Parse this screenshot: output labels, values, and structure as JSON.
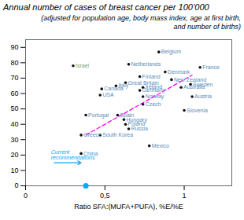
{
  "chart_data": {
    "type": "scatter",
    "title": "Annual number of cases of breast cancer per 100’000",
    "subtitle": "(adjusted for population age, body mass index, age at first birth,\nand number of births)",
    "x_label": "Ratio SFA:(MUFA+PUFA), %E/%E",
    "xlim": [
      0,
      1.3
    ],
    "ylim": [
      0,
      95
    ],
    "xticks": [
      0,
      {
        "value": 0.5,
        "label": "0,5"
      },
      1
    ],
    "yticks": [
      0,
      10,
      20,
      30,
      40,
      50,
      60,
      70,
      80,
      90
    ],
    "grid": false,
    "color": "#111111",
    "categories": [
      "Belgium",
      "Netherlands",
      "France",
      "Denmark",
      "Israel",
      "Finland",
      "New Zealand",
      "Great Britain",
      "Sweden",
      "Ireland",
      "Italy",
      "Australia",
      "Canada",
      "Germany",
      "Norway",
      "USA",
      "Austria",
      "Czech",
      "Slovenia",
      "Portugal",
      "Spain",
      "Hungary",
      "Poland",
      "Russia",
      "Greece",
      "South Korea",
      "Mexico",
      "China"
    ],
    "x": [
      0.84,
      0.65,
      1.1,
      0.88,
      0.3,
      0.72,
      0.92,
      0.63,
      1.04,
      0.74,
      0.57,
      0.98,
      0.48,
      0.72,
      0.74,
      0.47,
      1.05,
      0.74,
      1.0,
      0.38,
      0.58,
      0.62,
      0.63,
      0.65,
      0.35,
      0.47,
      0.78,
      0.35
    ],
    "values": [
      87,
      79,
      77,
      74,
      78,
      71,
      69,
      67,
      66,
      64,
      65,
      64,
      63,
      62,
      58,
      59,
      58,
      53,
      49,
      46,
      46,
      43,
      40,
      37,
      33,
      33,
      26,
      21
    ],
    "label_colors": [
      "#5B8DB8",
      "#5B8DB8",
      "#5B8DB8",
      "#5B8DB8",
      "#7B9E6B",
      "#5B8DB8",
      "#5B8DB8",
      "#5B8DB8",
      "#5B8DB8",
      "#5B8DB8",
      "#5B8DB8",
      "#5B8DB8",
      "#5B8DB8",
      "#5B8DB8",
      "#5B8DB8",
      "#5B8DB8",
      "#5B8DB8",
      "#5B8DB8",
      "#5B8DB8",
      "#5B8DB8",
      "#5B8DB8",
      "#5B8DB8",
      "#5B8DB8",
      "#5B8DB8",
      "#5B8DB8",
      "#5B8DB8",
      "#5B8DB8",
      "#5B8DB8"
    ],
    "trend": {
      "x": [
        0.38,
        1.05
      ],
      "values": [
        33,
        72
      ],
      "color": "#FF00FF",
      "line_style": "dashed"
    },
    "marker_point": {
      "x": 0.38,
      "y": 0,
      "color": "#00AAFF"
    },
    "annotations": [
      {
        "text": "Current\nrecommendations",
        "x": 0.18,
        "y": 15,
        "x_end": 0.35,
        "y_end": 15,
        "color": "#00AAFF"
      }
    ]
  }
}
